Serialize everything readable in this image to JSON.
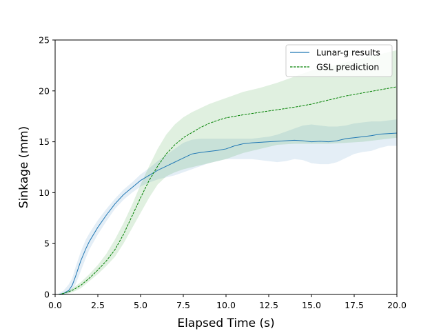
{
  "chart_data": {
    "type": "line",
    "title": "",
    "xlabel": "Elapsed Time (s)",
    "ylabel": "Sinkage (mm)",
    "xlim": [
      0,
      20
    ],
    "ylim": [
      0,
      25
    ],
    "x_ticks": [
      0,
      2.5,
      5,
      7.5,
      10,
      12.5,
      15,
      17.5,
      20
    ],
    "x_tick_labels": [
      "0.0",
      "2.5",
      "5.0",
      "7.5",
      "10.0",
      "12.5",
      "15.0",
      "17.5",
      "20.0"
    ],
    "y_ticks": [
      0,
      5,
      10,
      15,
      20,
      25
    ],
    "y_tick_labels": [
      "0",
      "5",
      "10",
      "15",
      "20",
      "25"
    ],
    "grid": false,
    "legend_position": "top-right",
    "series": [
      {
        "name": "Lunar-g results",
        "color": "#1f77b4",
        "line_style": "solid",
        "x": [
          0.2,
          0.5,
          0.8,
          1.0,
          1.2,
          1.5,
          1.8,
          2.0,
          2.5,
          3.0,
          3.5,
          4.0,
          4.5,
          5.0,
          5.5,
          6.0,
          6.5,
          7.0,
          7.5,
          8.0,
          8.5,
          9.0,
          9.5,
          10.0,
          10.5,
          11.0,
          11.5,
          12.0,
          12.5,
          13.0,
          13.5,
          14.0,
          14.5,
          15.0,
          15.5,
          16.0,
          16.5,
          17.0,
          17.5,
          18.0,
          18.5,
          19.0,
          19.5,
          20.0
        ],
        "y": [
          0.0,
          0.1,
          0.4,
          0.9,
          1.8,
          3.3,
          4.5,
          5.2,
          6.6,
          7.8,
          8.9,
          9.8,
          10.5,
          11.2,
          11.7,
          12.2,
          12.6,
          13.0,
          13.4,
          13.8,
          13.95,
          14.05,
          14.15,
          14.3,
          14.6,
          14.8,
          14.9,
          14.95,
          15.0,
          15.05,
          15.1,
          15.15,
          15.1,
          15.0,
          15.05,
          15.0,
          15.1,
          15.3,
          15.4,
          15.5,
          15.6,
          15.75,
          15.8,
          15.85
        ],
        "band_lower": [
          0.0,
          0.0,
          0.1,
          0.4,
          1.0,
          2.3,
          3.6,
          4.4,
          5.9,
          7.2,
          8.4,
          9.3,
          10.0,
          10.6,
          11.0,
          11.3,
          11.5,
          11.7,
          12.0,
          12.3,
          12.6,
          12.9,
          13.1,
          13.3,
          13.3,
          13.3,
          13.3,
          13.2,
          13.1,
          13.0,
          13.1,
          13.3,
          13.2,
          12.9,
          12.8,
          12.8,
          13.0,
          13.4,
          13.8,
          14.0,
          14.1,
          14.4,
          14.6,
          14.6
        ],
        "band_upper": [
          0.1,
          0.4,
          1.0,
          1.6,
          2.7,
          4.2,
          5.4,
          6.0,
          7.3,
          8.4,
          9.4,
          10.3,
          11.0,
          11.8,
          12.4,
          13.1,
          13.7,
          14.3,
          14.9,
          15.2,
          15.3,
          15.3,
          15.3,
          15.3,
          15.3,
          15.3,
          15.3,
          15.4,
          15.5,
          15.7,
          16.0,
          16.3,
          16.6,
          16.7,
          16.6,
          16.5,
          16.5,
          16.6,
          16.8,
          16.9,
          17.0,
          17.0,
          17.1,
          17.2
        ]
      },
      {
        "name": "GSL prediction",
        "color": "#008000",
        "line_style": "dashed",
        "x": [
          0.2,
          0.5,
          1.0,
          1.5,
          2.0,
          2.5,
          3.0,
          3.5,
          4.0,
          4.5,
          5.0,
          5.5,
          6.0,
          6.5,
          7.0,
          7.5,
          8.0,
          8.5,
          9.0,
          9.5,
          10.0,
          10.5,
          11.0,
          12.0,
          13.0,
          14.0,
          15.0,
          16.0,
          17.0,
          18.0,
          19.0,
          20.0
        ],
        "y": [
          0.0,
          0.1,
          0.4,
          0.9,
          1.6,
          2.4,
          3.3,
          4.4,
          5.9,
          7.7,
          9.5,
          11.2,
          12.6,
          13.8,
          14.7,
          15.4,
          15.9,
          16.4,
          16.8,
          17.1,
          17.35,
          17.5,
          17.65,
          17.9,
          18.15,
          18.4,
          18.7,
          19.1,
          19.5,
          19.8,
          20.1,
          20.4
        ],
        "band_lower": [
          0.0,
          0.0,
          0.2,
          0.6,
          1.3,
          2.0,
          2.8,
          3.7,
          5.0,
          6.5,
          8.0,
          9.5,
          10.8,
          11.6,
          12.0,
          12.3,
          12.5,
          12.7,
          12.9,
          13.1,
          13.3,
          13.6,
          13.9,
          14.3,
          14.7,
          14.8,
          14.8,
          14.8,
          14.9,
          15.0,
          15.2,
          15.4
        ],
        "band_upper": [
          0.0,
          0.2,
          0.6,
          1.2,
          2.0,
          2.9,
          4.0,
          5.4,
          7.0,
          8.8,
          10.8,
          12.6,
          14.3,
          15.7,
          16.7,
          17.4,
          17.9,
          18.3,
          18.7,
          19.0,
          19.3,
          19.6,
          19.9,
          20.3,
          20.8,
          21.4,
          22.0,
          22.4,
          22.8,
          23.2,
          23.6,
          24.0
        ]
      }
    ]
  }
}
